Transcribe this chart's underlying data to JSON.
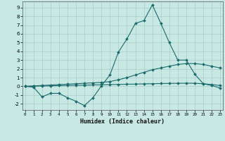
{
  "xlabel": "Humidex (Indice chaleur)",
  "x_main": [
    0,
    1,
    2,
    3,
    4,
    5,
    6,
    7,
    8,
    9,
    10,
    11,
    12,
    13,
    14,
    15,
    16,
    17,
    18,
    19,
    20,
    21,
    22,
    23
  ],
  "y_main": [
    0.0,
    -0.1,
    -1.2,
    -0.8,
    -0.8,
    -1.3,
    -1.7,
    -2.2,
    -1.3,
    0.05,
    1.3,
    3.9,
    5.4,
    7.2,
    7.5,
    9.3,
    7.2,
    5.0,
    3.0,
    3.0,
    1.4,
    0.3,
    0.1,
    -0.2
  ],
  "x_upper": [
    0,
    1,
    2,
    3,
    4,
    5,
    6,
    7,
    8,
    9,
    10,
    11,
    12,
    13,
    14,
    15,
    16,
    17,
    18,
    19,
    20,
    21,
    22,
    23
  ],
  "y_upper": [
    0.0,
    0.05,
    0.1,
    0.15,
    0.2,
    0.25,
    0.3,
    0.35,
    0.4,
    0.45,
    0.55,
    0.75,
    1.0,
    1.3,
    1.6,
    1.9,
    2.1,
    2.3,
    2.5,
    2.6,
    2.6,
    2.5,
    2.3,
    2.1
  ],
  "x_lower": [
    0,
    1,
    2,
    3,
    4,
    5,
    6,
    7,
    8,
    9,
    10,
    11,
    12,
    13,
    14,
    15,
    16,
    17,
    18,
    19,
    20,
    21,
    22,
    23
  ],
  "y_lower": [
    0.0,
    0.02,
    0.04,
    0.06,
    0.08,
    0.1,
    0.12,
    0.14,
    0.16,
    0.18,
    0.2,
    0.22,
    0.24,
    0.26,
    0.28,
    0.3,
    0.32,
    0.34,
    0.35,
    0.36,
    0.35,
    0.3,
    0.2,
    0.1
  ],
  "bg_color": "#c8e8e4",
  "grid_color": "#a8ccc8",
  "line_color": "#1a6b6b",
  "ylim": [
    -2.7,
    9.7
  ],
  "xlim": [
    -0.3,
    23.3
  ],
  "yticks": [
    -2,
    -1,
    0,
    1,
    2,
    3,
    4,
    5,
    6,
    7,
    8,
    9
  ],
  "xticks": [
    0,
    1,
    2,
    3,
    4,
    5,
    6,
    7,
    8,
    9,
    10,
    11,
    12,
    13,
    14,
    15,
    16,
    17,
    18,
    19,
    20,
    21,
    22,
    23
  ]
}
